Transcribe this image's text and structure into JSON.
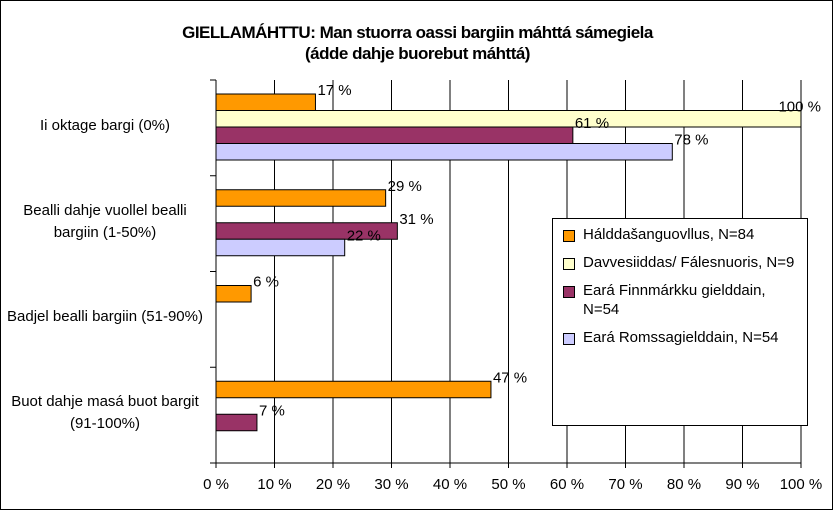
{
  "chart_data": {
    "type": "bar",
    "orientation": "horizontal",
    "title": "GIELLAMÁHTTU: Man stuorra oassi bargiin máhttá sámegiela",
    "subtitle": "(ádde dahje buorebut máhttá)",
    "categories": [
      "Ii oktage bargi (0%)",
      "Bealli dahje vuollel bealli bargiin (1-50%)",
      "Badjel bealli bargiin (51-90%)",
      "Buot dahje masá buot bargit (91-100%)"
    ],
    "xlim": [
      0,
      100
    ],
    "xticks": [
      "0 %",
      "10 %",
      "20 %",
      "30 %",
      "40 %",
      "50 %",
      "60 %",
      "70 %",
      "80 %",
      "90 %",
      "100 %"
    ],
    "grid": true,
    "legend_position": "right",
    "series": [
      {
        "name": "Hálddašanguovllus, N=84",
        "color": "#FF9900",
        "values": [
          17,
          29,
          6,
          47
        ],
        "labels": [
          "17 %",
          "29 %",
          "6 %",
          "47 %"
        ]
      },
      {
        "name": "Davvesiiddas/ Fálesnuoris, N=9",
        "color": "#FFFFCC",
        "values": [
          100,
          null,
          null,
          null
        ],
        "labels": [
          "100 %",
          "",
          "",
          ""
        ]
      },
      {
        "name": "Eará Finnmárkku gielddain, N=54",
        "color": "#993366",
        "values": [
          61,
          31,
          null,
          7
        ],
        "labels": [
          "61 %",
          "31 %",
          "",
          "7 %"
        ]
      },
      {
        "name": "Eará Romssagielddain, N=54",
        "color": "#CCCCFF",
        "values": [
          78,
          22,
          null,
          null
        ],
        "labels": [
          "78 %",
          "22 %",
          "",
          ""
        ]
      }
    ]
  }
}
